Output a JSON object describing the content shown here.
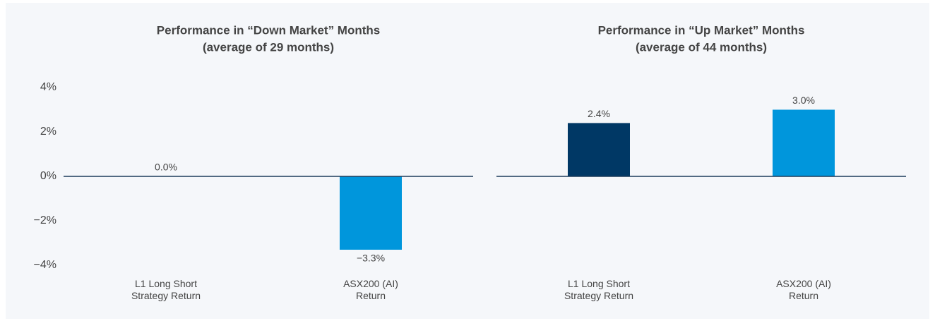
{
  "chart_data": [
    {
      "type": "bar",
      "title": "Performance in “Down Market” Months",
      "subtitle": "(average of 29 months)",
      "categories": [
        "L1 Long Short\nStrategy Return",
        "ASX200 (AI)\nReturn"
      ],
      "values": [
        0.0,
        -3.3
      ],
      "value_labels": [
        "0.0%",
        "−3.3%"
      ],
      "colors": [
        "#003865",
        "#0096dc"
      ],
      "ylim": [
        -4,
        4
      ],
      "yticks": [
        {
          "value": 4,
          "label": "4%"
        },
        {
          "value": 2,
          "label": "2%"
        },
        {
          "value": 0,
          "label": "0%"
        },
        {
          "value": -2,
          "label": "−2%"
        },
        {
          "value": -4,
          "label": "−4%"
        }
      ]
    },
    {
      "type": "bar",
      "title": "Performance in “Up Market” Months",
      "subtitle": "(average of 44 months)",
      "categories": [
        "L1 Long Short\nStrategy Return",
        "ASX200 (AI)\nReturn"
      ],
      "values": [
        2.4,
        3.0
      ],
      "value_labels": [
        "2.4%",
        "3.0%"
      ],
      "colors": [
        "#003865",
        "#0096dc"
      ],
      "ylim": [
        -4,
        4
      ]
    }
  ]
}
